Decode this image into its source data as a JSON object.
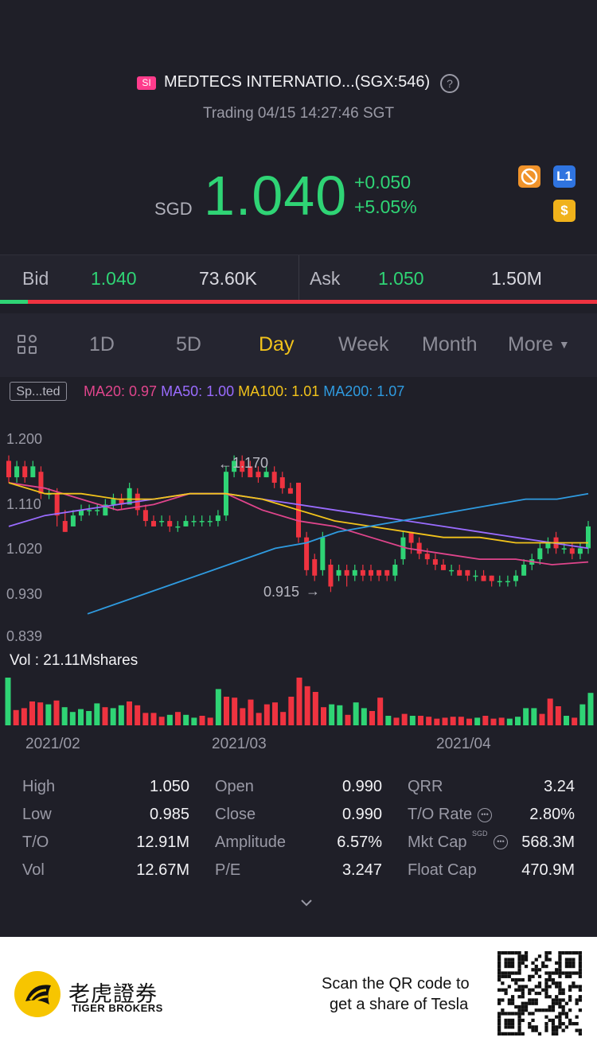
{
  "header": {
    "market_badge": "SI",
    "stock_name": "MEDTECS INTERNATIO...(SGX:546)",
    "status": "Trading 04/15 14:27:46 SGT",
    "currency": "SGD",
    "price": "1.040",
    "change_abs": "+0.050",
    "change_pct": "+5.05%",
    "help_icon": "?",
    "badges": {
      "level": "L1",
      "dollar": "$"
    },
    "colors": {
      "up": "#2fd475",
      "down": "#ef3340",
      "accent": "#f2c31b"
    }
  },
  "quote": {
    "bid_label": "Bid",
    "bid_price": "1.040",
    "bid_size": "73.60K",
    "ask_label": "Ask",
    "ask_price": "1.050",
    "ask_size": "1.50M",
    "bid_ratio": 0.047
  },
  "tabs": [
    "1D",
    "5D",
    "Day",
    "Week",
    "Month",
    "More"
  ],
  "active_tab": "Day",
  "indicators": {
    "sp_button": "Sp...ted",
    "ma20": "MA20: 0.97",
    "ma50": "MA50: 1.00",
    "ma100": "MA100: 1.01",
    "ma200": "MA200: 1.07",
    "ma_colors": {
      "ma20": "#e0458c",
      "ma50": "#9a6cff",
      "ma100": "#f2c31b",
      "ma200": "#2f9be0"
    }
  },
  "chart_data": {
    "type": "candlestick",
    "y_ticks": [
      "1.200",
      "1.110",
      "1.020",
      "0.930",
      "0.839"
    ],
    "ylim": [
      0.839,
      1.2
    ],
    "x_ticks": [
      "2021/02",
      "2021/03",
      "2021/04"
    ],
    "annotations": {
      "high": "1.170",
      "low": "0.915"
    },
    "volume_label": "Vol  : 21.11Mshares",
    "candles": [
      [
        1.16,
        1.13,
        1.17,
        1.12
      ],
      [
        1.13,
        1.15,
        1.16,
        1.12
      ],
      [
        1.15,
        1.13,
        1.16,
        1.12
      ],
      [
        1.13,
        1.15,
        1.16,
        1.13
      ],
      [
        1.14,
        1.1,
        1.15,
        1.09
      ],
      [
        1.1,
        1.1,
        1.11,
        1.09
      ],
      [
        1.1,
        1.06,
        1.11,
        1.04
      ],
      [
        1.05,
        1.03,
        1.07,
        1.03
      ],
      [
        1.04,
        1.06,
        1.07,
        1.04
      ],
      [
        1.06,
        1.07,
        1.08,
        1.05
      ],
      [
        1.07,
        1.07,
        1.08,
        1.06
      ],
      [
        1.07,
        1.07,
        1.08,
        1.06
      ],
      [
        1.06,
        1.08,
        1.09,
        1.06
      ],
      [
        1.08,
        1.09,
        1.1,
        1.07
      ],
      [
        1.09,
        1.08,
        1.1,
        1.07
      ],
      [
        1.08,
        1.11,
        1.12,
        1.08
      ],
      [
        1.1,
        1.07,
        1.11,
        1.06
      ],
      [
        1.07,
        1.05,
        1.08,
        1.04
      ],
      [
        1.05,
        1.04,
        1.06,
        1.04
      ],
      [
        1.05,
        1.05,
        1.06,
        1.04
      ],
      [
        1.05,
        1.04,
        1.06,
        1.03
      ],
      [
        1.04,
        1.04,
        1.05,
        1.03
      ],
      [
        1.04,
        1.05,
        1.06,
        1.04
      ],
      [
        1.05,
        1.05,
        1.06,
        1.04
      ],
      [
        1.05,
        1.05,
        1.06,
        1.04
      ],
      [
        1.05,
        1.05,
        1.06,
        1.04
      ],
      [
        1.05,
        1.06,
        1.07,
        1.04
      ],
      [
        1.06,
        1.14,
        1.15,
        1.05
      ],
      [
        1.14,
        1.16,
        1.17,
        1.13
      ],
      [
        1.16,
        1.14,
        1.17,
        1.13
      ],
      [
        1.15,
        1.13,
        1.16,
        1.13
      ],
      [
        1.14,
        1.13,
        1.15,
        1.12
      ],
      [
        1.13,
        1.14,
        1.15,
        1.13
      ],
      [
        1.14,
        1.12,
        1.15,
        1.11
      ],
      [
        1.13,
        1.11,
        1.14,
        1.1
      ],
      [
        1.11,
        1.1,
        1.12,
        1.1
      ],
      [
        1.12,
        1.02,
        1.12,
        1.01
      ],
      [
        1.02,
        0.96,
        1.03,
        0.95
      ],
      [
        0.98,
        0.95,
        0.99,
        0.94
      ],
      [
        0.96,
        1.02,
        1.03,
        0.95
      ],
      [
        0.97,
        0.93,
        0.98,
        0.92
      ],
      [
        0.95,
        0.96,
        0.97,
        0.94
      ],
      [
        0.96,
        0.95,
        0.97,
        0.93
      ],
      [
        0.95,
        0.96,
        0.97,
        0.94
      ],
      [
        0.96,
        0.95,
        0.97,
        0.94
      ],
      [
        0.96,
        0.95,
        0.97,
        0.94
      ],
      [
        0.96,
        0.95,
        0.96,
        0.94
      ],
      [
        0.96,
        0.95,
        0.96,
        0.94
      ],
      [
        0.95,
        0.97,
        0.98,
        0.94
      ],
      [
        0.98,
        1.02,
        1.03,
        0.97
      ],
      [
        1.03,
        1.01,
        1.03,
        0.99
      ],
      [
        1.01,
        0.99,
        1.02,
        0.98
      ],
      [
        0.99,
        0.98,
        1.0,
        0.97
      ],
      [
        0.98,
        0.97,
        0.99,
        0.96
      ],
      [
        0.97,
        0.96,
        0.98,
        0.96
      ],
      [
        0.96,
        0.96,
        0.97,
        0.95
      ],
      [
        0.96,
        0.95,
        0.97,
        0.95
      ],
      [
        0.96,
        0.95,
        0.96,
        0.94
      ],
      [
        0.95,
        0.95,
        0.96,
        0.94
      ],
      [
        0.95,
        0.94,
        0.96,
        0.94
      ],
      [
        0.95,
        0.94,
        0.95,
        0.93
      ],
      [
        0.94,
        0.94,
        0.95,
        0.93
      ],
      [
        0.94,
        0.94,
        0.95,
        0.93
      ],
      [
        0.94,
        0.95,
        0.96,
        0.93
      ],
      [
        0.95,
        0.97,
        0.98,
        0.95
      ],
      [
        0.97,
        0.98,
        0.99,
        0.96
      ],
      [
        0.98,
        1.0,
        1.01,
        0.97
      ],
      [
        1.0,
        1.01,
        1.02,
        0.99
      ],
      [
        1.02,
        1.0,
        1.03,
        0.99
      ],
      [
        1.0,
        1.0,
        1.01,
        0.99
      ],
      [
        1.0,
        0.99,
        1.01,
        0.98
      ],
      [
        0.99,
        1.0,
        1.01,
        0.98
      ],
      [
        1.0,
        1.04,
        1.05,
        0.99
      ]
    ],
    "ma_series": {
      "ma20": [
        1.12,
        1.11,
        1.09,
        1.07,
        1.08,
        1.1,
        1.1,
        1.07,
        1.05,
        1.04,
        1.02,
        1.0,
        0.99,
        0.98,
        0.98,
        0.97,
        0.975
      ],
      "ma50": [
        1.04,
        1.06,
        1.07,
        1.08,
        1.09,
        1.1,
        1.1,
        1.09,
        1.08,
        1.07,
        1.06,
        1.05,
        1.04,
        1.03,
        1.02,
        1.01,
        1.0
      ],
      "ma100": [
        1.12,
        1.1,
        1.1,
        1.09,
        1.09,
        1.1,
        1.1,
        1.09,
        1.07,
        1.05,
        1.04,
        1.03,
        1.02,
        1.02,
        1.01,
        1.01,
        1.01
      ],
      "ma200": [
        0.88,
        0.9,
        0.92,
        0.94,
        0.96,
        0.98,
        1.0,
        1.01,
        1.03,
        1.04,
        1.05,
        1.06,
        1.07,
        1.08,
        1.09,
        1.09,
        1.1
      ]
    },
    "volume": [
      [
        1.0,
        1
      ],
      [
        0.32,
        0
      ],
      [
        0.36,
        0
      ],
      [
        0.5,
        0
      ],
      [
        0.48,
        0
      ],
      [
        0.44,
        1
      ],
      [
        0.52,
        0
      ],
      [
        0.38,
        1
      ],
      [
        0.28,
        1
      ],
      [
        0.34,
        1
      ],
      [
        0.3,
        1
      ],
      [
        0.46,
        1
      ],
      [
        0.38,
        0
      ],
      [
        0.36,
        1
      ],
      [
        0.42,
        1
      ],
      [
        0.5,
        0
      ],
      [
        0.42,
        0
      ],
      [
        0.26,
        0
      ],
      [
        0.26,
        0
      ],
      [
        0.18,
        0
      ],
      [
        0.22,
        1
      ],
      [
        0.28,
        0
      ],
      [
        0.22,
        1
      ],
      [
        0.16,
        1
      ],
      [
        0.2,
        0
      ],
      [
        0.16,
        0
      ],
      [
        0.76,
        1
      ],
      [
        0.6,
        0
      ],
      [
        0.58,
        0
      ],
      [
        0.36,
        0
      ],
      [
        0.54,
        0
      ],
      [
        0.26,
        0
      ],
      [
        0.44,
        0
      ],
      [
        0.48,
        0
      ],
      [
        0.28,
        0
      ],
      [
        0.6,
        0
      ],
      [
        1.0,
        0
      ],
      [
        0.82,
        0
      ],
      [
        0.7,
        0
      ],
      [
        0.38,
        0
      ],
      [
        0.44,
        1
      ],
      [
        0.42,
        1
      ],
      [
        0.22,
        0
      ],
      [
        0.48,
        1
      ],
      [
        0.36,
        1
      ],
      [
        0.3,
        0
      ],
      [
        0.58,
        0
      ],
      [
        0.2,
        1
      ],
      [
        0.16,
        0
      ],
      [
        0.24,
        0
      ],
      [
        0.2,
        1
      ],
      [
        0.2,
        0
      ],
      [
        0.18,
        0
      ],
      [
        0.14,
        0
      ],
      [
        0.16,
        0
      ],
      [
        0.18,
        0
      ],
      [
        0.18,
        0
      ],
      [
        0.14,
        0
      ],
      [
        0.16,
        1
      ],
      [
        0.2,
        0
      ],
      [
        0.14,
        0
      ],
      [
        0.16,
        0
      ],
      [
        0.14,
        1
      ],
      [
        0.18,
        1
      ],
      [
        0.36,
        1
      ],
      [
        0.36,
        1
      ],
      [
        0.24,
        0
      ],
      [
        0.56,
        0
      ],
      [
        0.4,
        0
      ],
      [
        0.2,
        1
      ],
      [
        0.16,
        0
      ],
      [
        0.44,
        1
      ],
      [
        0.68,
        1
      ]
    ]
  },
  "stats": [
    {
      "label": "High",
      "value": "1.050"
    },
    {
      "label": "Open",
      "value": "0.990"
    },
    {
      "label": "QRR",
      "value": "3.24"
    },
    {
      "label": "Low",
      "value": "0.985"
    },
    {
      "label": "Close",
      "value": "0.990"
    },
    {
      "label": "T/O Rate",
      "value": "2.80%"
    },
    {
      "label": "T/O",
      "value": "12.91M"
    },
    {
      "label": "Amplitude",
      "value": "6.57%"
    },
    {
      "label": "Mkt Cap",
      "value": "568.3M"
    },
    {
      "label": "Vol",
      "value": "12.67M"
    },
    {
      "label": "P/E",
      "value": "3.247"
    },
    {
      "label": "Float Cap",
      "value": "470.9M"
    }
  ],
  "mkt_cap_currency": "SGD",
  "footer": {
    "logo_cn": "老虎證券",
    "logo_en": "TIGER BROKERS",
    "scan_line1": "Scan the QR code to",
    "scan_line2": "get a share of Tesla"
  }
}
